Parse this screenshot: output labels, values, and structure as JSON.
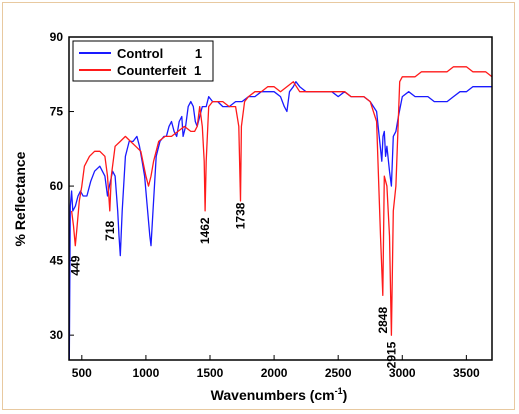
{
  "chart_data": {
    "type": "line",
    "xlabel": "Wavenumbers (cm",
    "xlabel_sup": "-1",
    "xlabel_close": ")",
    "ylabel": "% Reflectance",
    "xlim": [
      400,
      3700
    ],
    "ylim": [
      25,
      90
    ],
    "xticks": [
      500,
      1000,
      1500,
      2000,
      2500,
      3000,
      3500
    ],
    "yticks": [
      30,
      45,
      60,
      75,
      90
    ],
    "legend_position": "top-left",
    "series": [
      {
        "name": "Control",
        "name_suffix": "1",
        "color": "#1a1aff",
        "points": [
          [
            402,
            25
          ],
          [
            410,
            56
          ],
          [
            420,
            59
          ],
          [
            430,
            55
          ],
          [
            450,
            56
          ],
          [
            470,
            58
          ],
          [
            490,
            59
          ],
          [
            510,
            58
          ],
          [
            540,
            58
          ],
          [
            570,
            61
          ],
          [
            600,
            63
          ],
          [
            640,
            64
          ],
          [
            680,
            62
          ],
          [
            700,
            58
          ],
          [
            715,
            60
          ],
          [
            740,
            63
          ],
          [
            760,
            62
          ],
          [
            780,
            55
          ],
          [
            790,
            50
          ],
          [
            800,
            46
          ],
          [
            815,
            55
          ],
          [
            840,
            66
          ],
          [
            870,
            69
          ],
          [
            900,
            69
          ],
          [
            930,
            70
          ],
          [
            950,
            68
          ],
          [
            970,
            65
          ],
          [
            990,
            62
          ],
          [
            1010,
            56
          ],
          [
            1030,
            50
          ],
          [
            1040,
            48
          ],
          [
            1055,
            55
          ],
          [
            1080,
            66
          ],
          [
            1110,
            69
          ],
          [
            1140,
            70
          ],
          [
            1160,
            70
          ],
          [
            1180,
            72
          ],
          [
            1200,
            73
          ],
          [
            1220,
            71
          ],
          [
            1240,
            70
          ],
          [
            1260,
            73
          ],
          [
            1280,
            74
          ],
          [
            1290,
            70
          ],
          [
            1310,
            72
          ],
          [
            1330,
            76
          ],
          [
            1350,
            77
          ],
          [
            1370,
            76
          ],
          [
            1385,
            73
          ],
          [
            1400,
            72
          ],
          [
            1420,
            74
          ],
          [
            1440,
            76
          ],
          [
            1470,
            76
          ],
          [
            1490,
            78
          ],
          [
            1520,
            77
          ],
          [
            1560,
            77
          ],
          [
            1600,
            76
          ],
          [
            1650,
            76
          ],
          [
            1700,
            77
          ],
          [
            1750,
            77
          ],
          [
            1800,
            78
          ],
          [
            1850,
            78
          ],
          [
            1900,
            79
          ],
          [
            1950,
            79
          ],
          [
            2000,
            79
          ],
          [
            2050,
            78
          ],
          [
            2080,
            76
          ],
          [
            2100,
            75
          ],
          [
            2120,
            79
          ],
          [
            2150,
            80
          ],
          [
            2170,
            81
          ],
          [
            2200,
            80
          ],
          [
            2250,
            79
          ],
          [
            2300,
            79
          ],
          [
            2350,
            79
          ],
          [
            2400,
            79
          ],
          [
            2450,
            79
          ],
          [
            2500,
            78
          ],
          [
            2550,
            79
          ],
          [
            2600,
            78
          ],
          [
            2650,
            78
          ],
          [
            2700,
            78
          ],
          [
            2750,
            77
          ],
          [
            2800,
            75
          ],
          [
            2820,
            70
          ],
          [
            2840,
            65
          ],
          [
            2850,
            70
          ],
          [
            2860,
            71
          ],
          [
            2870,
            66
          ],
          [
            2880,
            68
          ],
          [
            2900,
            63
          ],
          [
            2915,
            60
          ],
          [
            2930,
            70
          ],
          [
            2950,
            71
          ],
          [
            2970,
            74
          ],
          [
            3000,
            78
          ],
          [
            3050,
            79
          ],
          [
            3100,
            78
          ],
          [
            3150,
            78
          ],
          [
            3200,
            78
          ],
          [
            3250,
            77
          ],
          [
            3300,
            77
          ],
          [
            3350,
            77
          ],
          [
            3400,
            78
          ],
          [
            3450,
            79
          ],
          [
            3500,
            79
          ],
          [
            3550,
            80
          ],
          [
            3600,
            80
          ],
          [
            3650,
            80
          ],
          [
            3700,
            80
          ]
        ]
      },
      {
        "name": "Counterfeit",
        "name_suffix": "1",
        "color": "#ff1a1a",
        "points": [
          [
            420,
            55
          ],
          [
            435,
            52
          ],
          [
            449,
            48
          ],
          [
            460,
            51
          ],
          [
            480,
            57
          ],
          [
            500,
            60
          ],
          [
            520,
            64
          ],
          [
            560,
            66
          ],
          [
            600,
            67
          ],
          [
            640,
            67
          ],
          [
            680,
            66
          ],
          [
            700,
            62
          ],
          [
            718,
            55
          ],
          [
            730,
            62
          ],
          [
            760,
            68
          ],
          [
            800,
            69
          ],
          [
            840,
            70
          ],
          [
            880,
            69
          ],
          [
            920,
            68
          ],
          [
            960,
            67
          ],
          [
            1000,
            62
          ],
          [
            1020,
            60
          ],
          [
            1040,
            62
          ],
          [
            1060,
            65
          ],
          [
            1100,
            69
          ],
          [
            1150,
            70
          ],
          [
            1200,
            70
          ],
          [
            1250,
            71
          ],
          [
            1300,
            72
          ],
          [
            1350,
            71
          ],
          [
            1380,
            71
          ],
          [
            1400,
            72
          ],
          [
            1420,
            76
          ],
          [
            1440,
            72
          ],
          [
            1455,
            65
          ],
          [
            1462,
            55
          ],
          [
            1470,
            65
          ],
          [
            1490,
            76
          ],
          [
            1520,
            77
          ],
          [
            1560,
            77
          ],
          [
            1600,
            77
          ],
          [
            1650,
            76
          ],
          [
            1700,
            76
          ],
          [
            1725,
            72
          ],
          [
            1738,
            57
          ],
          [
            1745,
            72
          ],
          [
            1770,
            77
          ],
          [
            1800,
            78
          ],
          [
            1850,
            79
          ],
          [
            1900,
            79
          ],
          [
            1950,
            80
          ],
          [
            2000,
            80
          ],
          [
            2050,
            79
          ],
          [
            2100,
            80
          ],
          [
            2150,
            81
          ],
          [
            2200,
            79
          ],
          [
            2250,
            79
          ],
          [
            2300,
            79
          ],
          [
            2350,
            79
          ],
          [
            2400,
            79
          ],
          [
            2450,
            79
          ],
          [
            2500,
            79
          ],
          [
            2550,
            79
          ],
          [
            2600,
            78
          ],
          [
            2650,
            78
          ],
          [
            2700,
            78
          ],
          [
            2750,
            77
          ],
          [
            2800,
            73
          ],
          [
            2830,
            50
          ],
          [
            2848,
            38
          ],
          [
            2860,
            62
          ],
          [
            2880,
            60
          ],
          [
            2900,
            50
          ],
          [
            2915,
            30
          ],
          [
            2930,
            55
          ],
          [
            2950,
            60
          ],
          [
            2980,
            81
          ],
          [
            3000,
            82
          ],
          [
            3050,
            82
          ],
          [
            3100,
            82
          ],
          [
            3150,
            83
          ],
          [
            3200,
            83
          ],
          [
            3250,
            83
          ],
          [
            3300,
            83
          ],
          [
            3350,
            83
          ],
          [
            3400,
            84
          ],
          [
            3450,
            84
          ],
          [
            3500,
            84
          ],
          [
            3550,
            83
          ],
          [
            3600,
            83
          ],
          [
            3650,
            83
          ],
          [
            3700,
            82
          ]
        ]
      }
    ],
    "annotations": [
      {
        "text": "449",
        "x": 449,
        "y": 44
      },
      {
        "text": "718",
        "x": 718,
        "y": 51
      },
      {
        "text": "1462",
        "x": 1462,
        "y": 51
      },
      {
        "text": "1738",
        "x": 1738,
        "y": 54
      },
      {
        "text": "2848",
        "x": 2848,
        "y": 33
      },
      {
        "text": "2915",
        "x": 2915,
        "y": 26
      }
    ]
  }
}
